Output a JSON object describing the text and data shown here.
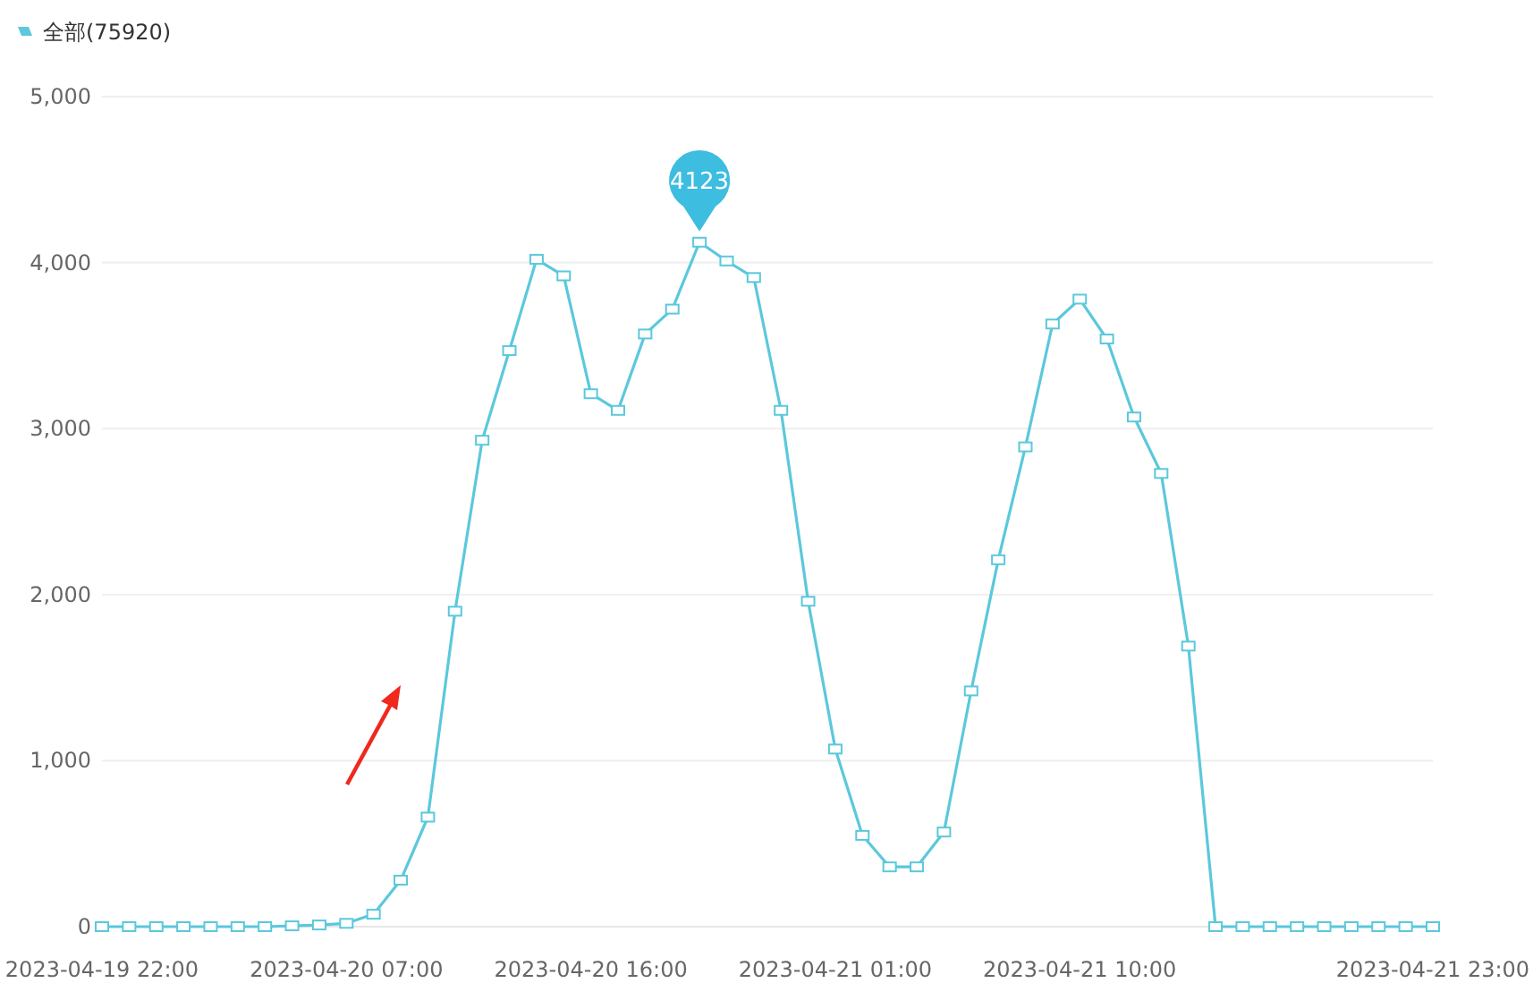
{
  "chart_data": {
    "type": "line",
    "x": [
      "2023-04-19T22:00",
      "2023-04-19T23:00",
      "2023-04-20T00:00",
      "2023-04-20T01:00",
      "2023-04-20T02:00",
      "2023-04-20T03:00",
      "2023-04-20T04:00",
      "2023-04-20T05:00",
      "2023-04-20T06:00",
      "2023-04-20T07:00",
      "2023-04-20T08:00",
      "2023-04-20T09:00",
      "2023-04-20T10:00",
      "2023-04-20T11:00",
      "2023-04-20T12:00",
      "2023-04-20T13:00",
      "2023-04-20T14:00",
      "2023-04-20T15:00",
      "2023-04-20T16:00",
      "2023-04-20T17:00",
      "2023-04-20T18:00",
      "2023-04-20T19:00",
      "2023-04-20T20:00",
      "2023-04-20T21:00",
      "2023-04-20T22:00",
      "2023-04-20T23:00",
      "2023-04-21T00:00",
      "2023-04-21T01:00",
      "2023-04-21T02:00",
      "2023-04-21T03:00",
      "2023-04-21T04:00",
      "2023-04-21T05:00",
      "2023-04-21T06:00",
      "2023-04-21T07:00",
      "2023-04-21T08:00",
      "2023-04-21T09:00",
      "2023-04-21T10:00",
      "2023-04-21T11:00",
      "2023-04-21T12:00",
      "2023-04-21T13:00",
      "2023-04-21T14:00",
      "2023-04-21T15:00",
      "2023-04-21T16:00",
      "2023-04-21T17:00",
      "2023-04-21T18:00",
      "2023-04-21T19:00",
      "2023-04-21T20:00",
      "2023-04-21T21:00",
      "2023-04-21T22:00",
      "2023-04-21T23:00"
    ],
    "series": [
      {
        "name": "全部(75920)",
        "color": "#5bc8dc",
        "values": [
          0,
          0,
          0,
          0,
          0,
          0,
          0,
          5,
          10,
          20,
          75,
          280,
          660,
          1900,
          2930,
          3470,
          4020,
          3920,
          3210,
          3110,
          3570,
          3720,
          4123,
          4010,
          3910,
          3110,
          1960,
          1070,
          550,
          360,
          360,
          570,
          1420,
          2210,
          2890,
          3630,
          3780,
          3540,
          3070,
          2730,
          1690,
          0,
          0,
          0,
          0,
          0,
          0,
          0,
          0,
          0
        ]
      }
    ],
    "xlim": [
      "2023-04-19T22:00",
      "2023-04-21T23:00"
    ],
    "xticks": [
      {
        "value": "2023-04-19T22:00",
        "label": "2023-04-19 22:00"
      },
      {
        "value": "2023-04-20T07:00",
        "label": "2023-04-20 07:00"
      },
      {
        "value": "2023-04-20T16:00",
        "label": "2023-04-20 16:00"
      },
      {
        "value": "2023-04-21T01:00",
        "label": "2023-04-21 01:00"
      },
      {
        "value": "2023-04-21T10:00",
        "label": "2023-04-21 10:00"
      },
      {
        "value": "2023-04-21T23:00",
        "label": "2023-04-21 23:00"
      }
    ],
    "ylim": [
      0,
      5000
    ],
    "yticks": [
      {
        "value": 0,
        "label": "0"
      },
      {
        "value": 1000,
        "label": "1,000"
      },
      {
        "value": 2000,
        "label": "2,000"
      },
      {
        "value": 3000,
        "label": "3,000"
      },
      {
        "value": 4000,
        "label": "4,000"
      },
      {
        "value": 5000,
        "label": "5,000"
      }
    ],
    "annotations": [
      {
        "text": "4123",
        "x": "2023-04-20T20:00",
        "y": 4123
      }
    ],
    "grid": "y",
    "legend": "top left",
    "marker": "square",
    "line_style": "solid"
  }
}
